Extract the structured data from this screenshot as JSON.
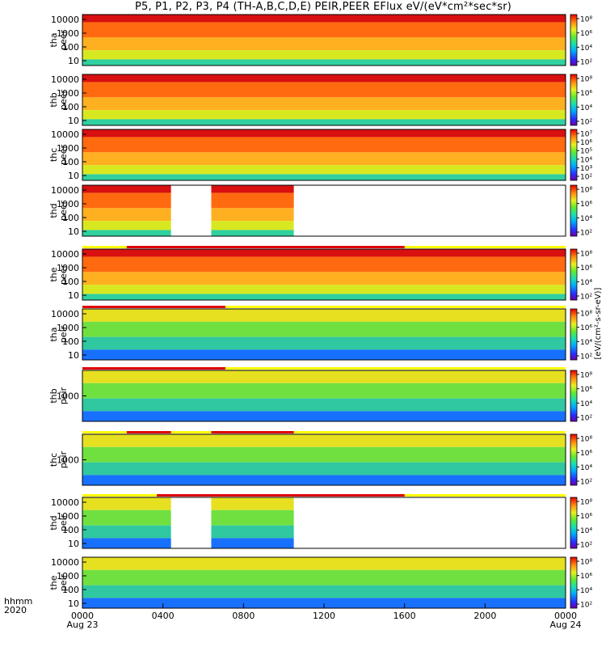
{
  "title": "P5, P1, P2, P3, P4 (TH-A,B,C,D,E) PEIR,PEER EFlux eV/(eV*cm²*sec*sr)",
  "chart_data": {
    "type": "heatmap",
    "x_label_lines": [
      "hhmm",
      "2020"
    ],
    "x_ticks": [
      {
        "value": 0,
        "label": "0000",
        "sub": "Aug 23"
      },
      {
        "value": 4,
        "label": "0400",
        "sub": ""
      },
      {
        "value": 8,
        "label": "0800",
        "sub": ""
      },
      {
        "value": 12,
        "label": "1200",
        "sub": ""
      },
      {
        "value": 16,
        "label": "1600",
        "sub": ""
      },
      {
        "value": 20,
        "label": "2000",
        "sub": ""
      },
      {
        "value": 24,
        "label": "0000",
        "sub": "Aug 24"
      }
    ],
    "xlim": [
      0,
      24
    ],
    "colormap": "rainbow",
    "colorbar_title": "[eV/(cm²-s-sr-eV)]",
    "panels": [
      {
        "id": "tha-peer",
        "ylabel": [
          "tha",
          "peer"
        ],
        "yticks": [
          "10000",
          "1000",
          "100",
          "10"
        ],
        "cbar_ticks": [
          "10⁸",
          "10⁶",
          "10⁴",
          "10²"
        ],
        "data_gaps": [],
        "flag_bar": []
      },
      {
        "id": "thb-peer",
        "ylabel": [
          "thb",
          "peer"
        ],
        "yticks": [
          "10000",
          "1000",
          "100",
          "10"
        ],
        "cbar_ticks": [
          "10⁸",
          "10⁶",
          "10⁴",
          "10²"
        ],
        "data_gaps": [],
        "flag_bar": []
      },
      {
        "id": "thc-peer",
        "ylabel": [
          "thc",
          "peer"
        ],
        "yticks": [
          "10000",
          "1000",
          "100",
          "10"
        ],
        "cbar_ticks": [
          "10⁷",
          "10⁶",
          "10⁵",
          "10⁴",
          "10³",
          "10²"
        ],
        "data_gaps": [],
        "flag_bar": []
      },
      {
        "id": "thd-peer",
        "ylabel": [
          "thd",
          "peer"
        ],
        "yticks": [
          "10000",
          "1000",
          "100",
          "10"
        ],
        "cbar_ticks": [
          "10⁸",
          "10⁶",
          "10⁴",
          "10²"
        ],
        "data_gaps": [
          [
            4.4,
            6.4
          ],
          [
            10.5,
            24
          ]
        ],
        "flag_bar": []
      },
      {
        "id": "the-peer",
        "ylabel": [
          "the",
          "peer"
        ],
        "yticks": [
          "10000",
          "1000",
          "100",
          "10"
        ],
        "cbar_ticks": [
          "10⁸",
          "10⁶",
          "10⁴",
          "10²"
        ],
        "data_gaps": [],
        "flag_bar": [
          [
            2.2,
            16.0
          ]
        ]
      },
      {
        "id": "tha-peir",
        "ylabel": [
          "tha",
          "peir"
        ],
        "yticks": [
          "10000",
          "1000",
          "100",
          "10"
        ],
        "cbar_ticks": [
          "10⁸",
          "10⁶",
          "10⁴",
          "10²"
        ],
        "data_gaps": [],
        "flag_bar": [
          [
            0.0,
            7.1
          ]
        ]
      },
      {
        "id": "thb-peir",
        "ylabel": [
          "thb",
          "peir"
        ],
        "yticks": [
          "1000"
        ],
        "cbar_ticks": [
          "10⁸",
          "10⁶",
          "10⁴",
          "10²"
        ],
        "data_gaps": [],
        "flag_bar": [
          [
            0.0,
            7.1
          ]
        ]
      },
      {
        "id": "thc-peir",
        "ylabel": [
          "thc",
          "peir"
        ],
        "yticks": [
          "1000"
        ],
        "cbar_ticks": [
          "10⁸",
          "10⁶",
          "10⁴",
          "10²"
        ],
        "data_gaps": [],
        "flag_bar": [
          [
            2.2,
            4.4
          ],
          [
            6.4,
            10.5
          ]
        ]
      },
      {
        "id": "thd-peir",
        "ylabel": [
          "thd",
          "peir"
        ],
        "yticks": [
          "10000",
          "1000",
          "100",
          "10"
        ],
        "cbar_ticks": [
          "10⁸",
          "10⁶",
          "10⁴",
          "10²"
        ],
        "data_gaps": [
          [
            4.4,
            6.4
          ],
          [
            10.5,
            24
          ]
        ],
        "flag_bar": [
          [
            3.7,
            16.0
          ]
        ]
      },
      {
        "id": "the-peir",
        "ylabel": [
          "the",
          "peir"
        ],
        "yticks": [
          "10000",
          "1000",
          "100",
          "10"
        ],
        "cbar_ticks": [
          "10⁸",
          "10⁶",
          "10⁴",
          "10²"
        ],
        "data_gaps": [],
        "flag_bar": []
      }
    ]
  }
}
